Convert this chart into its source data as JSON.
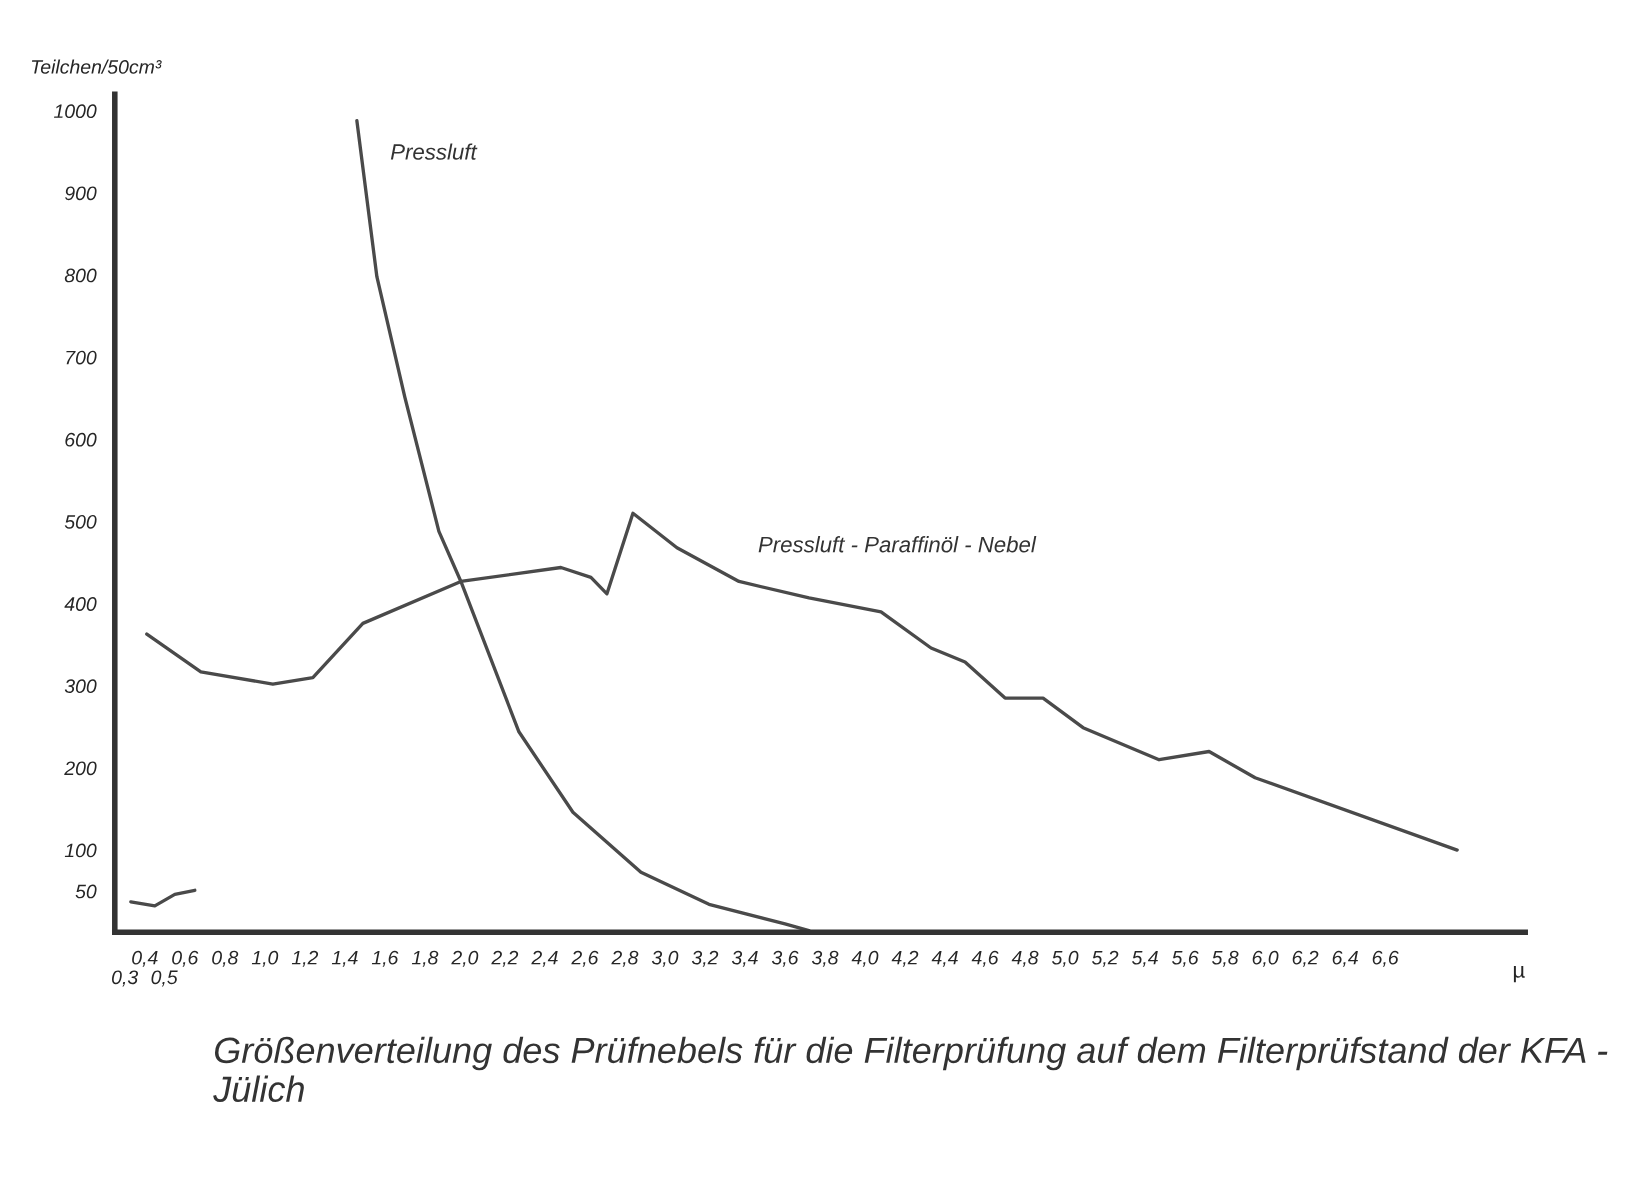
{
  "chart_data": {
    "type": "line",
    "title": "Größenverteilung des Prüfnebels für die Filterprüfung auf dem Filterprüfstand der KFA - Jülich",
    "ylabel": "Teilchen/50cm³",
    "xlabel": "µ",
    "series": [
      {
        "name": "Pressluft",
        "color": "#4a4a4a",
        "x": [
          1.46,
          1.56,
          1.7,
          1.87,
          1.98,
          2.27,
          2.54,
          2.88,
          3.22,
          3.6,
          3.72
        ],
        "values": [
          988,
          798,
          651,
          488,
          427,
          244,
          146,
          73,
          34,
          10,
          2
        ]
      },
      {
        "name": "Pressluft - Paraffinöl - Nebel",
        "color": "#4a4a4a",
        "x": [
          0.41,
          0.68,
          1.04,
          1.24,
          1.49,
          1.98,
          2.48,
          2.63,
          2.71,
          2.84,
          3.06,
          3.37,
          3.72,
          4.08,
          4.33,
          4.5,
          4.7,
          4.89,
          5.09,
          5.47,
          5.72,
          5.95,
          6.96
        ],
        "values": [
          363,
          317,
          302,
          310,
          376,
          427,
          444,
          432,
          412,
          510,
          468,
          427,
          407,
          390,
          346,
          329,
          285,
          285,
          249,
          210,
          220,
          188,
          100
        ]
      },
      {
        "color": "#4a4a4a",
        "x": [
          0.33,
          0.45,
          0.55,
          0.65
        ],
        "values": [
          37,
          32,
          46,
          51
        ]
      }
    ],
    "xlim": [
      0.25,
      7.3
    ],
    "ylim": [
      0,
      1020
    ],
    "annotations": [
      "0,3",
      "0,5"
    ],
    "xticks": [
      {
        "value": 0.4,
        "label": "0,4"
      },
      {
        "value": 0.6,
        "label": "0,6"
      },
      {
        "value": 0.8,
        "label": "0,8"
      },
      {
        "value": 1.0,
        "label": "1,0"
      },
      {
        "value": 1.2,
        "label": "1,2"
      },
      {
        "value": 1.4,
        "label": "1,4"
      },
      {
        "value": 1.6,
        "label": "1,6"
      },
      {
        "value": 1.8,
        "label": "1,8"
      },
      {
        "value": 2.0,
        "label": "2,0"
      },
      {
        "value": 2.2,
        "label": "2,2"
      },
      {
        "value": 2.4,
        "label": "2,4"
      },
      {
        "value": 2.6,
        "label": "2,6"
      },
      {
        "value": 2.8,
        "label": "2,8"
      },
      {
        "value": 3.0,
        "label": "3,0"
      },
      {
        "value": 3.2,
        "label": "3,2"
      },
      {
        "value": 3.4,
        "label": "3,4"
      },
      {
        "value": 3.6,
        "label": "3,6"
      },
      {
        "value": 3.8,
        "label": "3,8"
      },
      {
        "value": 4.0,
        "label": "4,0"
      },
      {
        "value": 4.2,
        "label": "4,2"
      },
      {
        "value": 4.4,
        "label": "4,4"
      },
      {
        "value": 4.6,
        "label": "4,6"
      },
      {
        "value": 4.8,
        "label": "4,8"
      },
      {
        "value": 5.0,
        "label": "5,0"
      },
      {
        "value": 5.2,
        "label": "5,2"
      },
      {
        "value": 5.4,
        "label": "5,4"
      },
      {
        "value": 5.6,
        "label": "5,6"
      },
      {
        "value": 5.8,
        "label": "5,8"
      },
      {
        "value": 6.0,
        "label": "6,0"
      },
      {
        "value": 6.2,
        "label": "6,2"
      },
      {
        "value": 6.4,
        "label": "6,4"
      },
      {
        "value": 6.6,
        "label": "6,6"
      }
    ],
    "yticks": [
      50,
      100,
      200,
      300,
      400,
      500,
      600,
      700,
      800,
      900,
      1000
    ],
    "grid": false,
    "legend": false,
    "marker": "none",
    "line_style": "solid"
  }
}
